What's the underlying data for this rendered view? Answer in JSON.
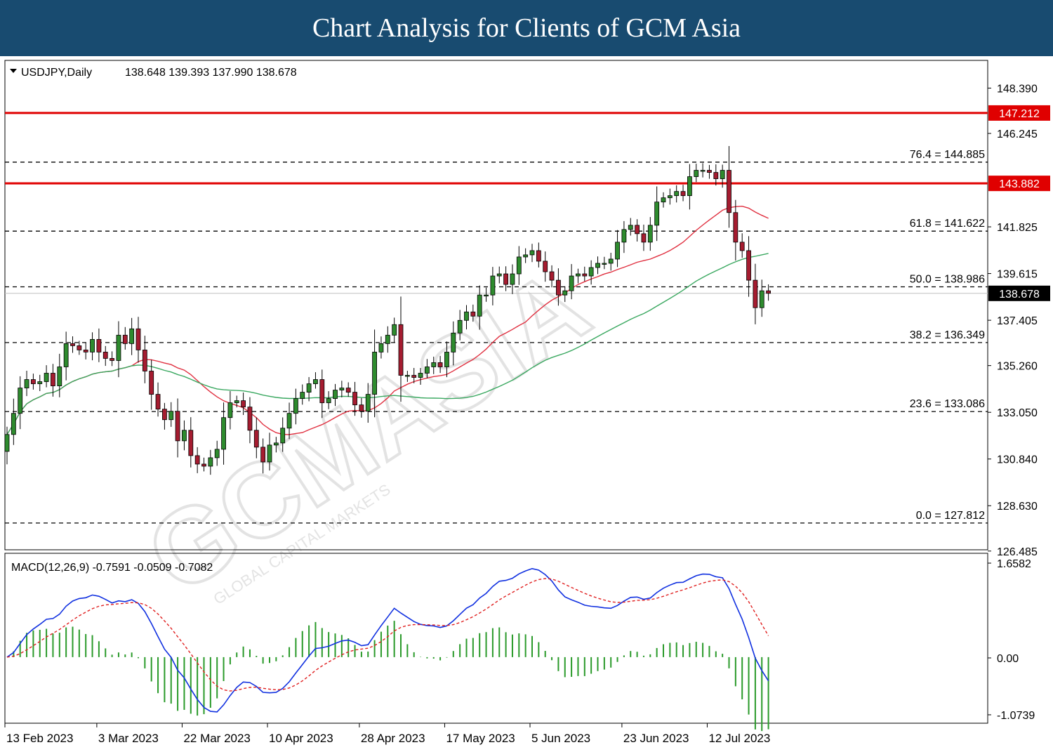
{
  "banner": {
    "title": "Chart Analysis for Clients of GCM Asia"
  },
  "colors": {
    "banner": "#184b70",
    "bull": "#2e8b2e",
    "bear": "#a51c30",
    "resistance": "#e00000",
    "ma_fast": "#e03040",
    "ma_slow": "#3aa860",
    "macd_line": "#1030e0",
    "signal_line": "#e02020",
    "histogram": "#2a9a2a"
  },
  "watermark": {
    "text": "GCMASIA",
    "subtext": "GLOBAL CAPITAL MARKETS"
  },
  "chart_data": [
    {
      "type": "candlestick",
      "symbol_label": "USDJPY,Daily",
      "ohlc_label": "138.648 139.393 137.990 138.678",
      "ylim": [
        126.0,
        149.0
      ],
      "y_ticks": [
        "148.390",
        "146.245",
        "141.825",
        "139.615",
        "137.405",
        "135.260",
        "133.050",
        "130.840",
        "128.630",
        "126.485"
      ],
      "x_labels": [
        {
          "label": "13 Feb 2023",
          "index": 0
        },
        {
          "label": "3 Mar 2023",
          "index": 14
        },
        {
          "label": "22 Mar 2023",
          "index": 27
        },
        {
          "label": "10 Apr 2023",
          "index": 40
        },
        {
          "label": "28 Apr 2023",
          "index": 54
        },
        {
          "label": "17 May 2023",
          "index": 67
        },
        {
          "label": "5 Jun 2023",
          "index": 80
        },
        {
          "label": "23 Jun 2023",
          "index": 94
        },
        {
          "label": "12 Jul 2023",
          "index": 107
        }
      ],
      "resistance_levels": [
        {
          "value": 147.212,
          "label": "147.212"
        },
        {
          "value": 143.882,
          "label": "143.882"
        }
      ],
      "fibonacci_levels": [
        {
          "value": 144.885,
          "label": "76.4 = 144.885"
        },
        {
          "value": 141.622,
          "label": "61.8 = 141.622"
        },
        {
          "value": 138.986,
          "label": "50.0 = 138.986"
        },
        {
          "value": 136.349,
          "label": "38.2 = 136.349"
        },
        {
          "value": 133.086,
          "label": "23.6 = 133.086"
        },
        {
          "value": 127.812,
          "label": "0.0 = 127.812"
        }
      ],
      "current_price": {
        "value": 138.678,
        "label": "138.678"
      },
      "closes": [
        132.0,
        133.0,
        134.2,
        134.6,
        134.4,
        134.5,
        134.9,
        134.3,
        135.2,
        136.3,
        136.2,
        136.0,
        135.9,
        136.5,
        135.9,
        135.6,
        135.5,
        136.7,
        136.3,
        137.0,
        136.0,
        135.0,
        133.9,
        133.2,
        132.7,
        133.1,
        131.7,
        132.2,
        131.0,
        130.6,
        130.5,
        130.9,
        131.3,
        132.8,
        133.5,
        133.6,
        133.3,
        132.2,
        131.4,
        130.7,
        131.5,
        131.6,
        132.3,
        133.0,
        133.7,
        134.0,
        134.4,
        134.6,
        133.5,
        133.7,
        134.1,
        134.2,
        134.0,
        133.4,
        133.1,
        133.9,
        135.9,
        136.3,
        136.7,
        137.2,
        134.8,
        134.8,
        134.7,
        134.9,
        135.2,
        135.4,
        135.2,
        135.9,
        136.8,
        137.4,
        137.8,
        137.6,
        138.6,
        138.6,
        139.5,
        139.6,
        139.1,
        139.6,
        140.4,
        140.5,
        140.7,
        140.2,
        139.7,
        139.3,
        138.6,
        138.8,
        139.5,
        139.6,
        139.5,
        139.9,
        140.1,
        140.1,
        140.3,
        141.1,
        141.7,
        141.9,
        141.5,
        141.1,
        141.9,
        143.0,
        143.2,
        143.3,
        143.5,
        143.3,
        144.2,
        144.5,
        144.5,
        144.4,
        144.1,
        144.5,
        142.5,
        141.1,
        140.7,
        139.3,
        138.0,
        138.8,
        138.68
      ],
      "macd_label": "MACD(12,26,9) -0.7591 -0.0509 -0.7082",
      "macd_ylim": [
        -1.12,
        1.76
      ],
      "macd_ticks": [
        "1.6582",
        "0.00",
        "-1.0739"
      ]
    }
  ]
}
